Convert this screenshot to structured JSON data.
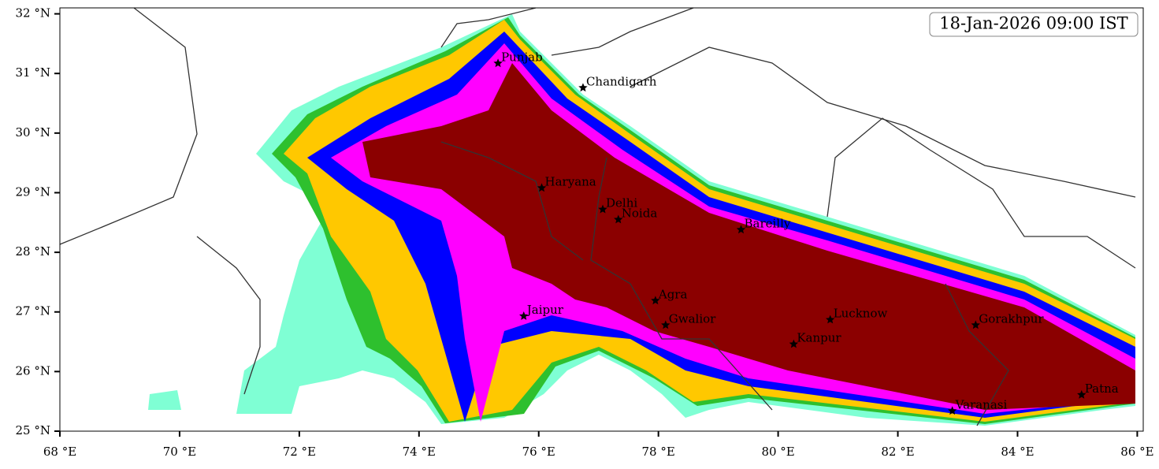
{
  "chart_data": {
    "type": "map",
    "title": "18-Jan-2026 09:00 IST",
    "xlim": [
      68,
      86.1
    ],
    "ylim": [
      25,
      32.1
    ],
    "xticks": [
      {
        "value": 68,
        "label": "68 °E"
      },
      {
        "value": 70,
        "label": "70 °E"
      },
      {
        "value": 72,
        "label": "72 °E"
      },
      {
        "value": 74,
        "label": "74 °E"
      },
      {
        "value": 76,
        "label": "76 °E"
      },
      {
        "value": 78,
        "label": "78 °E"
      },
      {
        "value": 80,
        "label": "80 °E"
      },
      {
        "value": 82,
        "label": "82 °E"
      },
      {
        "value": 84,
        "label": "84 °E"
      },
      {
        "value": 86,
        "label": "86 °E"
      }
    ],
    "yticks": [
      {
        "value": 25,
        "label": "25 °N"
      },
      {
        "value": 26,
        "label": "26 °N"
      },
      {
        "value": 27,
        "label": "27 °N"
      },
      {
        "value": 28,
        "label": "28 °N"
      },
      {
        "value": 29,
        "label": "29 °N"
      },
      {
        "value": 30,
        "label": "30 °N"
      },
      {
        "value": 31,
        "label": "31 °N"
      },
      {
        "value": 32,
        "label": "32 °N"
      }
    ],
    "cities": [
      {
        "name": "Punjab",
        "lon": 75.32,
        "lat": 31.17
      },
      {
        "name": "Chandigarh",
        "lon": 76.74,
        "lat": 30.76
      },
      {
        "name": "Haryana",
        "lon": 76.05,
        "lat": 29.08
      },
      {
        "name": "Delhi",
        "lon": 77.07,
        "lat": 28.72
      },
      {
        "name": "Noida",
        "lon": 77.33,
        "lat": 28.55
      },
      {
        "name": "Bareilly",
        "lon": 79.38,
        "lat": 28.38
      },
      {
        "name": "Agra",
        "lon": 77.95,
        "lat": 27.19
      },
      {
        "name": "Jaipur",
        "lon": 75.75,
        "lat": 26.93
      },
      {
        "name": "Gwalior",
        "lon": 78.12,
        "lat": 26.78
      },
      {
        "name": "Lucknow",
        "lon": 80.87,
        "lat": 26.87
      },
      {
        "name": "Kanpur",
        "lon": 80.26,
        "lat": 26.46
      },
      {
        "name": "Gorakhpur",
        "lon": 83.3,
        "lat": 26.78
      },
      {
        "name": "Varanasi",
        "lon": 82.91,
        "lat": 25.34
      },
      {
        "name": "Patna",
        "lon": 85.07,
        "lat": 25.61
      }
    ]
  }
}
